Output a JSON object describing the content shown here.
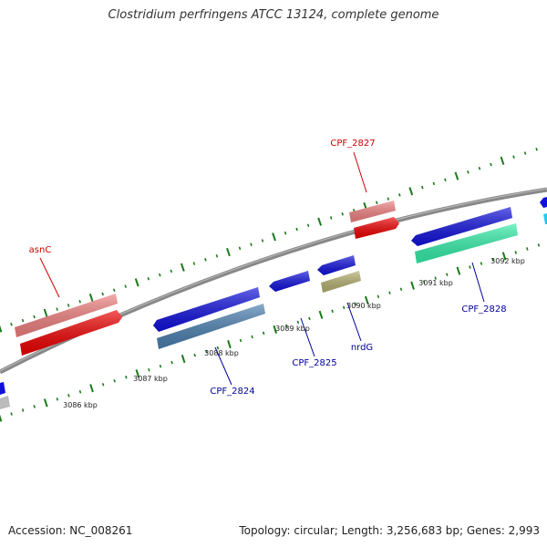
{
  "title": "Clostridium perfringens ATCC 13124, complete genome",
  "footer": {
    "accession": "Accession: NC_008261",
    "stats": "Topology: circular; Length: 3,256,683 bp; Genes: 2,993"
  },
  "scale_labels": [
    "3086 kbp",
    "3087 kbp",
    "3088 kbp",
    "3089 kbp",
    "3090 kbp",
    "3091 kbp",
    "3092 kbp"
  ],
  "gene_labels": [
    {
      "name": "asnC",
      "color": "#cc0000"
    },
    {
      "name": "CPF_2827",
      "color": "#cc0000"
    },
    {
      "name": "CPF_2824",
      "color": "#000099"
    },
    {
      "name": "CPF_2825",
      "color": "#000099"
    },
    {
      "name": "nrdG",
      "color": "#000099"
    },
    {
      "name": "CPF_2828",
      "color": "#000099"
    }
  ],
  "colors": {
    "backbone": "#888888",
    "tick": "#1a7a1a",
    "forward_light": "#f08080",
    "forward_dark": "#ee0000",
    "reverse_blue": "#1111dd",
    "reverse_steel": "#4a7fb0",
    "reverse_olive": "#b5b070",
    "reverse_green": "#33eeaa",
    "gray": "#bbbbbb",
    "cyan": "#22ccee"
  }
}
